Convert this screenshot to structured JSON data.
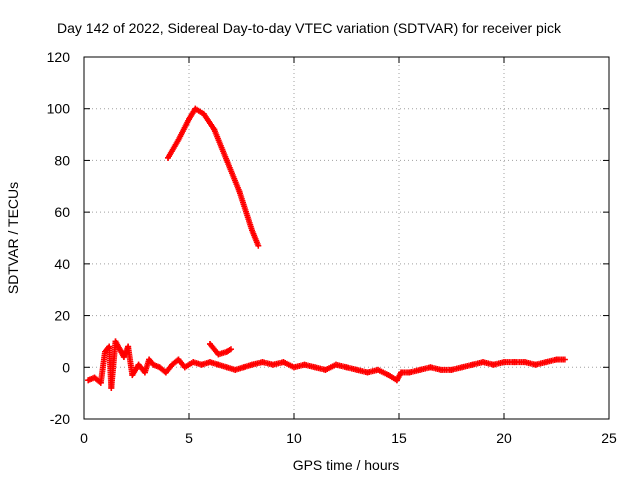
{
  "chart_data": {
    "type": "scatter",
    "title": "Day 142 of 2022, Sidereal Day-to-day VTEC variation (SDTVAR) for receiver pick",
    "xlabel": "GPS time / hours",
    "ylabel": "SDTVAR / TECUs",
    "xlim": [
      0,
      25
    ],
    "ylim": [
      -20,
      120
    ],
    "xticks": [
      0,
      5,
      10,
      15,
      20,
      25
    ],
    "yticks": [
      -20,
      0,
      20,
      40,
      60,
      80,
      100,
      120
    ],
    "grid": true,
    "marker": "+",
    "series": [
      {
        "name": "SDTVAR",
        "color": "#ff0000",
        "x": [
          4.0,
          4.5,
          5.0,
          5.3,
          5.7,
          6.2,
          6.8,
          7.4,
          8.0,
          8.3
        ],
        "y": [
          81,
          88,
          96,
          100,
          98,
          92,
          80,
          68,
          53,
          47
        ]
      },
      {
        "name": "SDTVAR-low",
        "color": "#ff0000",
        "x": [
          0.2,
          0.5,
          0.8,
          1.0,
          1.2,
          1.3,
          1.5,
          1.7,
          1.9,
          2.1,
          2.3,
          2.6,
          2.9,
          3.1,
          3.3,
          3.6,
          3.9,
          4.2,
          4.5,
          4.8,
          5.2,
          5.6,
          6.0,
          6.4,
          6.8,
          7.2,
          7.6,
          8.0,
          8.5,
          9.0,
          9.5,
          10.0,
          10.5,
          11.0,
          11.5,
          12.0,
          12.5,
          13.0,
          13.5,
          14.0,
          14.5,
          14.9,
          15.1,
          15.5,
          16.0,
          16.5,
          17.0,
          17.5,
          18.0,
          18.5,
          19.0,
          19.5,
          20.0,
          20.5,
          21.0,
          21.5,
          22.0,
          22.5,
          22.9
        ],
        "y": [
          -5,
          -4,
          -6,
          6,
          8,
          -8,
          10,
          7,
          4,
          8,
          -3,
          1,
          -2,
          3,
          1,
          0,
          -2,
          1,
          3,
          0,
          2,
          1,
          2,
          1,
          0,
          -1,
          0,
          1,
          2,
          1,
          2,
          0,
          1,
          0,
          -1,
          1,
          0,
          -1,
          -2,
          -1,
          -3,
          -5,
          -2,
          -2,
          -1,
          0,
          -1,
          -1,
          0,
          1,
          2,
          1,
          2,
          2,
          2,
          1,
          2,
          3,
          3
        ]
      },
      {
        "name": "SDTVAR-short",
        "color": "#ff0000",
        "x": [
          6.0,
          6.4,
          6.8,
          7.0
        ],
        "y": [
          9,
          5,
          6,
          7
        ]
      }
    ]
  }
}
